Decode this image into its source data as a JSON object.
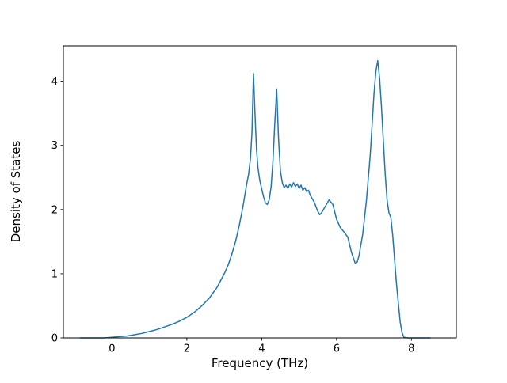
{
  "figure": {
    "background": "#ffffff"
  },
  "chart_data": {
    "type": "line",
    "title": "",
    "xlabel": "Frequency (THz)",
    "ylabel": "Density of States",
    "xlim": [
      -1.3,
      9.2
    ],
    "ylim": [
      0,
      4.55
    ],
    "xticks": [
      0,
      2,
      4,
      6,
      8
    ],
    "yticks": [
      0,
      1,
      2,
      3,
      4
    ],
    "grid": false,
    "line_color": "#1f77b4",
    "line_width": 1.5,
    "x": [
      -0.85,
      -0.5,
      -0.2,
      0.0,
      0.2,
      0.4,
      0.6,
      0.8,
      1.0,
      1.2,
      1.4,
      1.6,
      1.8,
      2.0,
      2.2,
      2.4,
      2.6,
      2.8,
      3.0,
      3.1,
      3.2,
      3.3,
      3.4,
      3.5,
      3.6,
      3.65,
      3.7,
      3.74,
      3.78,
      3.82,
      3.86,
      3.9,
      3.95,
      4.0,
      4.05,
      4.1,
      4.15,
      4.2,
      4.25,
      4.3,
      4.35,
      4.4,
      4.45,
      4.5,
      4.55,
      4.6,
      4.65,
      4.7,
      4.75,
      4.8,
      4.85,
      4.9,
      4.95,
      5.0,
      5.05,
      5.1,
      5.15,
      5.2,
      5.25,
      5.3,
      5.4,
      5.5,
      5.55,
      5.6,
      5.7,
      5.8,
      5.9,
      6.0,
      6.1,
      6.2,
      6.3,
      6.4,
      6.5,
      6.55,
      6.6,
      6.7,
      6.8,
      6.9,
      7.0,
      7.05,
      7.1,
      7.15,
      7.2,
      7.3,
      7.35,
      7.4,
      7.45,
      7.5,
      7.6,
      7.7,
      7.75,
      7.8,
      7.9,
      8.1,
      8.5
    ],
    "y": [
      0,
      0,
      0,
      0.01,
      0.02,
      0.03,
      0.05,
      0.07,
      0.1,
      0.13,
      0.17,
      0.21,
      0.26,
      0.32,
      0.4,
      0.5,
      0.62,
      0.78,
      1.0,
      1.13,
      1.3,
      1.5,
      1.75,
      2.05,
      2.4,
      2.55,
      2.8,
      3.2,
      4.12,
      3.5,
      2.95,
      2.65,
      2.45,
      2.32,
      2.2,
      2.1,
      2.08,
      2.15,
      2.35,
      2.75,
      3.35,
      3.88,
      3.1,
      2.6,
      2.42,
      2.34,
      2.38,
      2.33,
      2.4,
      2.35,
      2.42,
      2.36,
      2.4,
      2.33,
      2.38,
      2.3,
      2.34,
      2.28,
      2.3,
      2.22,
      2.12,
      1.97,
      1.92,
      1.95,
      2.05,
      2.15,
      2.08,
      1.85,
      1.72,
      1.65,
      1.57,
      1.33,
      1.16,
      1.18,
      1.28,
      1.62,
      2.15,
      2.85,
      3.8,
      4.15,
      4.32,
      4.05,
      3.6,
      2.55,
      2.15,
      1.95,
      1.88,
      1.6,
      0.85,
      0.25,
      0.08,
      0.01,
      0.0,
      0.0,
      0.0
    ]
  }
}
